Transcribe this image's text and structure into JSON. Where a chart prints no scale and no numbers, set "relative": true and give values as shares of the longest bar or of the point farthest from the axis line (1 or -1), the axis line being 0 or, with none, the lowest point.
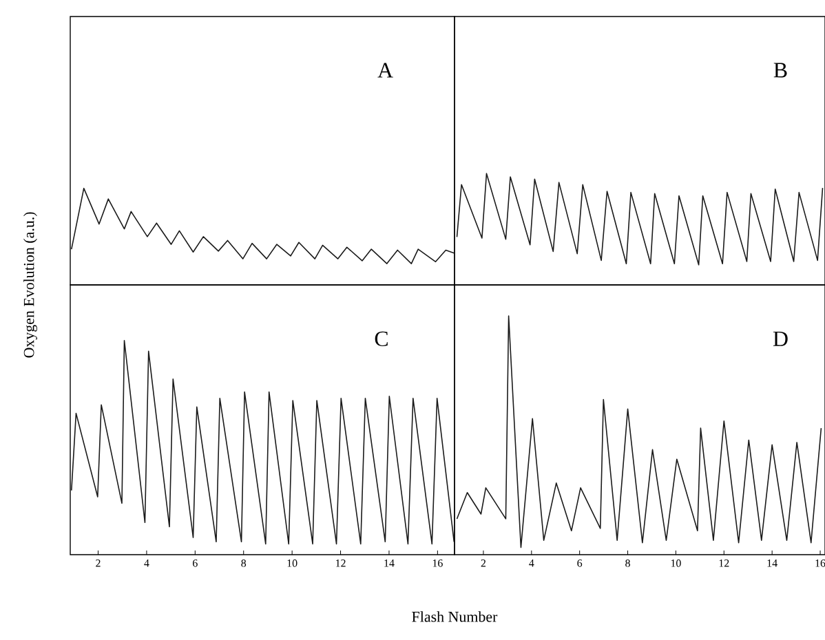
{
  "chart_data": [
    {
      "type": "line",
      "title": "A",
      "relative": true,
      "color": "#1a1a1a",
      "xlim": [
        0.85,
        16.7
      ],
      "tick_labels": false,
      "x": [
        0.9,
        1.41,
        2.04,
        2.42,
        3.08,
        3.36,
        4.03,
        4.41,
        5.01,
        5.35,
        5.92,
        6.34,
        6.96,
        7.34,
        7.97,
        8.35,
        8.95,
        9.37,
        9.94,
        10.28,
        10.94,
        11.26,
        11.89,
        12.26,
        12.89,
        13.27,
        13.91,
        14.35,
        14.92,
        15.2,
        15.92,
        16.34,
        16.68
      ],
      "values": [
        0.37,
        1.0,
        0.63,
        0.89,
        0.58,
        0.76,
        0.5,
        0.64,
        0.42,
        0.56,
        0.34,
        0.5,
        0.35,
        0.46,
        0.27,
        0.43,
        0.27,
        0.42,
        0.3,
        0.44,
        0.27,
        0.41,
        0.27,
        0.39,
        0.25,
        0.37,
        0.22,
        0.36,
        0.22,
        0.37,
        0.24,
        0.36,
        0.33
      ]
    },
    {
      "type": "line",
      "title": "B",
      "relative": true,
      "color": "#1a1a1a",
      "xlim": [
        0.8,
        16.2
      ],
      "tick_labels": false,
      "x": [
        0.9,
        1.09,
        1.94,
        2.13,
        2.93,
        3.12,
        3.94,
        4.13,
        4.9,
        5.14,
        5.9,
        6.13,
        6.9,
        7.14,
        7.94,
        8.13,
        8.95,
        9.12,
        9.94,
        10.13,
        10.95,
        11.12,
        11.94,
        12.13,
        12.95,
        13.12,
        13.94,
        14.13,
        14.9,
        15.12,
        15.89,
        16.1
      ],
      "values": [
        0.43,
        0.9,
        0.42,
        1.0,
        0.41,
        0.97,
        0.36,
        0.95,
        0.3,
        0.92,
        0.28,
        0.9,
        0.22,
        0.84,
        0.19,
        0.83,
        0.19,
        0.82,
        0.19,
        0.8,
        0.18,
        0.8,
        0.19,
        0.83,
        0.21,
        0.82,
        0.21,
        0.86,
        0.21,
        0.83,
        0.22,
        0.87
      ]
    },
    {
      "type": "line",
      "title": "C",
      "relative": true,
      "color": "#1a1a1a",
      "xlim": [
        0.85,
        16.7
      ],
      "tick_labels": "x",
      "xticks": [
        2,
        4,
        6,
        8,
        10,
        12,
        14,
        16
      ],
      "xlabel": "Flash Number",
      "ylabel": "Oxygen Evolution (a.u.)",
      "x": [
        0.9,
        1.09,
        1.98,
        2.13,
        2.98,
        3.08,
        3.93,
        4.08,
        4.94,
        5.09,
        5.92,
        6.07,
        6.87,
        7.02,
        7.91,
        8.04,
        8.91,
        9.05,
        9.86,
        10.03,
        10.85,
        11.02,
        11.83,
        12.02,
        12.83,
        13.02,
        13.84,
        14.01,
        14.78,
        14.99,
        15.77,
        15.98,
        16.68
      ],
      "values": [
        0.3,
        0.66,
        0.27,
        0.7,
        0.24,
        1.0,
        0.15,
        0.95,
        0.13,
        0.82,
        0.08,
        0.69,
        0.06,
        0.73,
        0.06,
        0.76,
        0.05,
        0.76,
        0.05,
        0.72,
        0.05,
        0.72,
        0.05,
        0.73,
        0.05,
        0.73,
        0.06,
        0.74,
        0.05,
        0.73,
        0.05,
        0.73,
        0.06
      ]
    },
    {
      "type": "line",
      "title": "D",
      "relative": true,
      "color": "#1a1a1a",
      "xlim": [
        0.8,
        16.2
      ],
      "tick_labels": "x",
      "xticks": [
        2,
        4,
        6,
        8,
        10,
        12,
        14,
        16
      ],
      "x": [
        0.9,
        1.33,
        1.9,
        2.1,
        2.93,
        3.05,
        3.56,
        4.04,
        4.51,
        5.03,
        5.66,
        6.04,
        6.86,
        6.99,
        7.56,
        8.0,
        8.61,
        9.03,
        9.6,
        10.04,
        10.9,
        11.03,
        11.56,
        12.0,
        12.61,
        13.03,
        13.56,
        14.0,
        14.61,
        15.03,
        15.62,
        16.04
      ],
      "values": [
        0.15,
        0.26,
        0.17,
        0.28,
        0.15,
        1.0,
        0.03,
        0.57,
        0.06,
        0.3,
        0.1,
        0.28,
        0.11,
        0.65,
        0.06,
        0.61,
        0.05,
        0.44,
        0.06,
        0.4,
        0.1,
        0.53,
        0.06,
        0.56,
        0.05,
        0.48,
        0.06,
        0.46,
        0.06,
        0.47,
        0.05,
        0.53
      ]
    }
  ]
}
